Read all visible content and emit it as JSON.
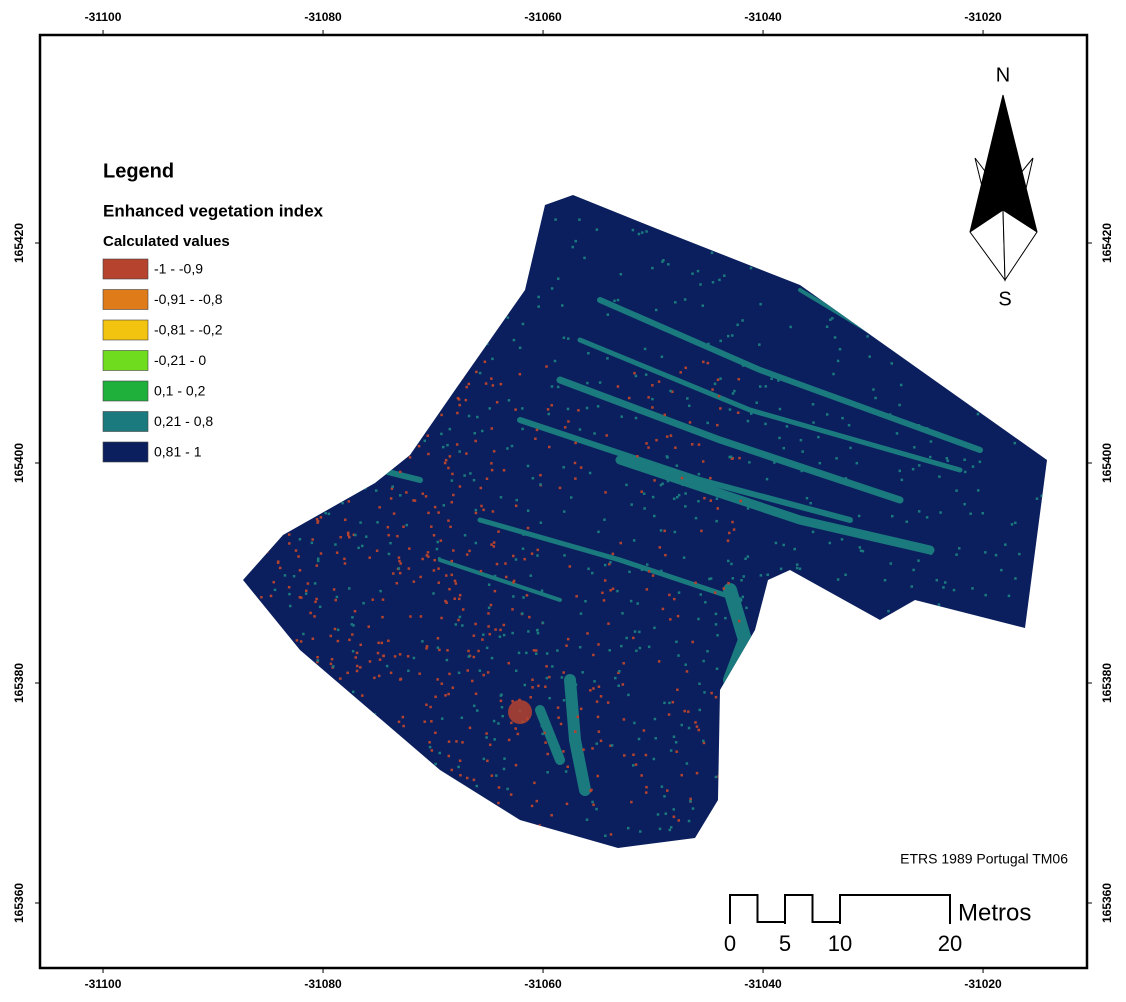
{
  "map": {
    "xlim": [
      -31105.73,
      -31010.55
    ],
    "ylim": [
      165354.09,
      165438.91
    ],
    "xticks": [
      -31100,
      -31080,
      -31060,
      -31040,
      -31020
    ],
    "yticks": [
      165420,
      165400,
      165380,
      165360
    ],
    "legend": {
      "title": "Legend",
      "layer": "Enhanced vegetation index",
      "field": "Calculated values",
      "classes": [
        {
          "label": "-1 - -0,9",
          "color": "#b5432e"
        },
        {
          "label": "-0,91 - -0,8",
          "color": "#e07b1a"
        },
        {
          "label": "-0,81 - -0,2",
          "color": "#f2c40f"
        },
        {
          "label": "-0,21 - 0",
          "color": "#6fdc1e"
        },
        {
          "label": "0,1 - 0,2",
          "color": "#1fb03c"
        },
        {
          "label": "0,21 - 0,8",
          "color": "#1b7a7e"
        },
        {
          "label": "0,81 - 1",
          "color": "#0b1f5e"
        }
      ]
    },
    "north": "N",
    "south": "S",
    "projection": "ETRS 1989 Portugal TM06",
    "scale_bar": {
      "ticks": [
        0,
        5,
        10,
        20
      ],
      "unit": "Metros"
    }
  }
}
